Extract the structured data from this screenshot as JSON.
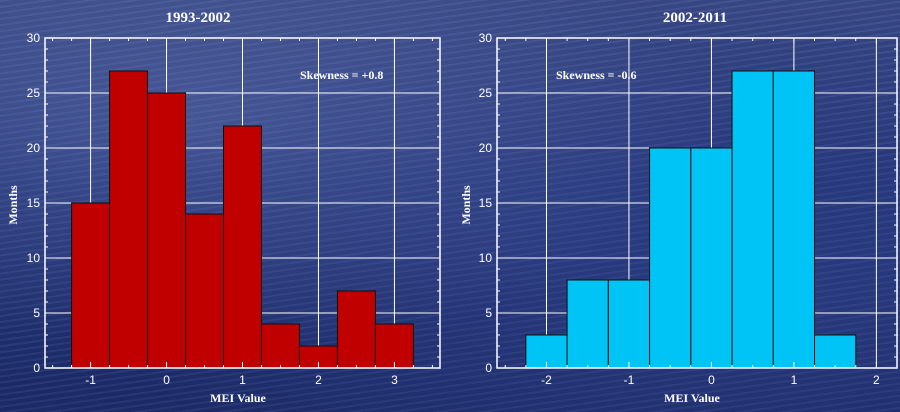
{
  "chart_data": [
    {
      "type": "bar",
      "title": "1993-2002",
      "annotation": "Skewness = +0.8",
      "xlabel": "MEI Value",
      "ylabel": "Months",
      "bin_width": 0.5,
      "bin_centers": [
        -1.0,
        -0.5,
        0.0,
        0.5,
        1.0,
        1.5,
        2.0,
        2.5,
        3.0
      ],
      "values": [
        15,
        27,
        25,
        14,
        22,
        4,
        2,
        7,
        4
      ],
      "xlim": [
        -1.6,
        3.6
      ],
      "ylim": [
        0,
        30
      ],
      "xticks": [
        -1,
        0,
        1,
        2,
        3
      ],
      "yticks": [
        0,
        5,
        10,
        15,
        20,
        25,
        30
      ],
      "grid": true,
      "bar_color": "#c00000"
    },
    {
      "type": "bar",
      "title": "2002-2011",
      "annotation": "Skewness = -0.6",
      "xlabel": "MEI Value",
      "ylabel": "Months",
      "bin_width": 0.5,
      "bin_centers": [
        -2.0,
        -1.5,
        -1.0,
        -0.5,
        0.0,
        0.5,
        1.0,
        1.5
      ],
      "values": [
        3,
        8,
        8,
        20,
        20,
        27,
        27,
        3
      ],
      "xlim": [
        -2.6,
        2.25
      ],
      "ylim": [
        0,
        30
      ],
      "xticks": [
        -2,
        -1,
        0,
        1,
        2
      ],
      "yticks": [
        0,
        5,
        10,
        15,
        20,
        25,
        30
      ],
      "grid": true,
      "bar_color": "#00c4f5"
    }
  ]
}
